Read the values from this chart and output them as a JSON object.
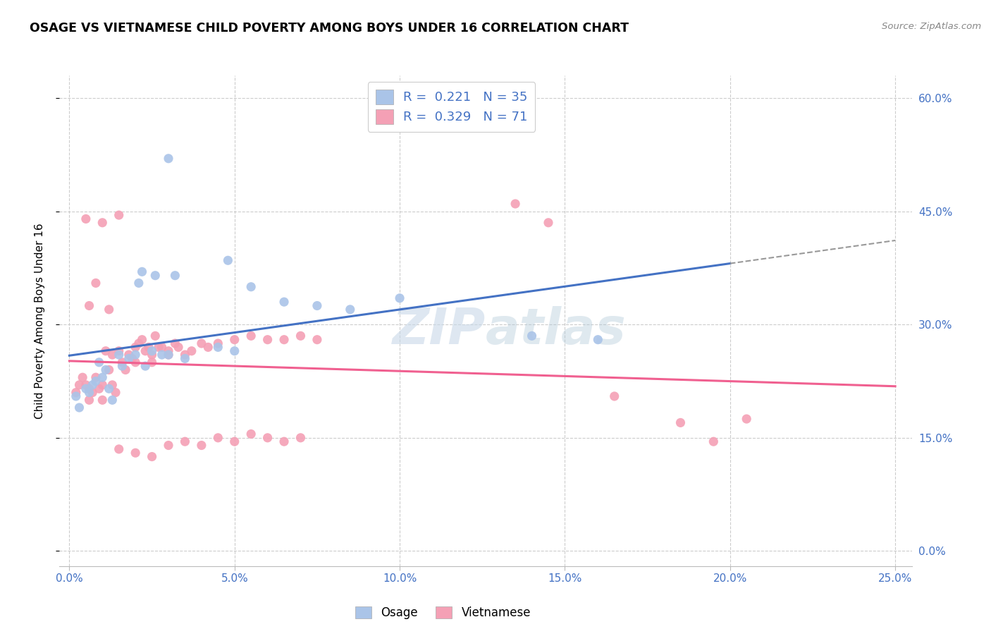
{
  "title": "OSAGE VS VIETNAMESE CHILD POVERTY AMONG BOYS UNDER 16 CORRELATION CHART",
  "source": "Source: ZipAtlas.com",
  "xlabel_vals": [
    0.0,
    5.0,
    10.0,
    15.0,
    20.0,
    25.0
  ],
  "ylabel_vals": [
    0.0,
    15.0,
    30.0,
    45.0,
    60.0
  ],
  "ylabel_label": "Child Poverty Among Boys Under 16",
  "xlim": [
    -0.3,
    25.5
  ],
  "ylim": [
    -2.0,
    63.0
  ],
  "osage_R": "0.221",
  "osage_N": "35",
  "vietnamese_R": "0.329",
  "vietnamese_N": "71",
  "osage_color": "#aac4e8",
  "vietnamese_color": "#f4a0b5",
  "osage_line_color": "#4472c4",
  "vietnamese_line_color": "#f06090",
  "osage_points": [
    [
      0.2,
      20.5
    ],
    [
      0.3,
      19.0
    ],
    [
      0.5,
      21.5
    ],
    [
      0.6,
      21.0
    ],
    [
      0.7,
      22.0
    ],
    [
      0.8,
      22.5
    ],
    [
      0.9,
      25.0
    ],
    [
      1.0,
      23.0
    ],
    [
      1.1,
      24.0
    ],
    [
      1.2,
      21.5
    ],
    [
      1.3,
      20.0
    ],
    [
      1.5,
      26.0
    ],
    [
      1.6,
      24.5
    ],
    [
      1.8,
      25.5
    ],
    [
      2.0,
      26.0
    ],
    [
      2.1,
      35.5
    ],
    [
      2.2,
      37.0
    ],
    [
      2.3,
      24.5
    ],
    [
      2.5,
      26.5
    ],
    [
      2.6,
      36.5
    ],
    [
      2.8,
      26.0
    ],
    [
      3.0,
      26.0
    ],
    [
      3.2,
      36.5
    ],
    [
      3.5,
      25.5
    ],
    [
      4.5,
      27.0
    ],
    [
      4.8,
      38.5
    ],
    [
      5.0,
      26.5
    ],
    [
      5.5,
      35.0
    ],
    [
      6.5,
      33.0
    ],
    [
      7.5,
      32.5
    ],
    [
      8.5,
      32.0
    ],
    [
      10.0,
      33.5
    ],
    [
      3.0,
      52.0
    ],
    [
      14.0,
      28.5
    ],
    [
      16.0,
      28.0
    ]
  ],
  "vietnamese_points": [
    [
      0.2,
      21.0
    ],
    [
      0.3,
      22.0
    ],
    [
      0.4,
      23.0
    ],
    [
      0.5,
      22.0
    ],
    [
      0.6,
      21.5
    ],
    [
      0.6,
      20.0
    ],
    [
      0.7,
      21.0
    ],
    [
      0.8,
      23.0
    ],
    [
      0.9,
      21.5
    ],
    [
      1.0,
      22.0
    ],
    [
      1.0,
      20.0
    ],
    [
      1.1,
      26.5
    ],
    [
      1.2,
      24.0
    ],
    [
      1.3,
      22.0
    ],
    [
      1.3,
      26.0
    ],
    [
      1.4,
      21.0
    ],
    [
      1.5,
      26.5
    ],
    [
      1.6,
      25.0
    ],
    [
      1.7,
      24.0
    ],
    [
      1.8,
      26.0
    ],
    [
      1.9,
      25.5
    ],
    [
      2.0,
      25.0
    ],
    [
      2.0,
      27.0
    ],
    [
      2.1,
      27.5
    ],
    [
      2.2,
      28.0
    ],
    [
      2.3,
      26.5
    ],
    [
      2.4,
      27.0
    ],
    [
      2.5,
      26.0
    ],
    [
      2.5,
      25.0
    ],
    [
      2.6,
      28.5
    ],
    [
      2.7,
      27.0
    ],
    [
      2.8,
      27.0
    ],
    [
      3.0,
      26.5
    ],
    [
      3.0,
      26.0
    ],
    [
      3.2,
      27.5
    ],
    [
      3.3,
      27.0
    ],
    [
      3.5,
      26.0
    ],
    [
      3.7,
      26.5
    ],
    [
      4.0,
      27.5
    ],
    [
      4.2,
      27.0
    ],
    [
      4.5,
      27.5
    ],
    [
      5.0,
      28.0
    ],
    [
      5.5,
      28.5
    ],
    [
      6.0,
      28.0
    ],
    [
      6.5,
      28.0
    ],
    [
      0.5,
      44.0
    ],
    [
      1.0,
      43.5
    ],
    [
      1.5,
      44.5
    ],
    [
      0.8,
      35.5
    ],
    [
      1.2,
      32.0
    ],
    [
      0.6,
      32.5
    ],
    [
      1.5,
      13.5
    ],
    [
      2.0,
      13.0
    ],
    [
      2.5,
      12.5
    ],
    [
      3.0,
      14.0
    ],
    [
      3.5,
      14.5
    ],
    [
      4.0,
      14.0
    ],
    [
      4.5,
      15.0
    ],
    [
      5.0,
      14.5
    ],
    [
      5.5,
      15.5
    ],
    [
      6.0,
      15.0
    ],
    [
      6.5,
      14.5
    ],
    [
      7.0,
      15.0
    ],
    [
      13.5,
      46.0
    ],
    [
      14.5,
      43.5
    ],
    [
      16.5,
      20.5
    ],
    [
      18.5,
      17.0
    ],
    [
      19.5,
      14.5
    ],
    [
      20.5,
      17.5
    ],
    [
      7.0,
      28.5
    ],
    [
      7.5,
      28.0
    ]
  ],
  "background_color": "#ffffff",
  "grid_color": "#cccccc",
  "watermark_text": "ZIPAtlas",
  "watermark_color": "#c8d8e8"
}
